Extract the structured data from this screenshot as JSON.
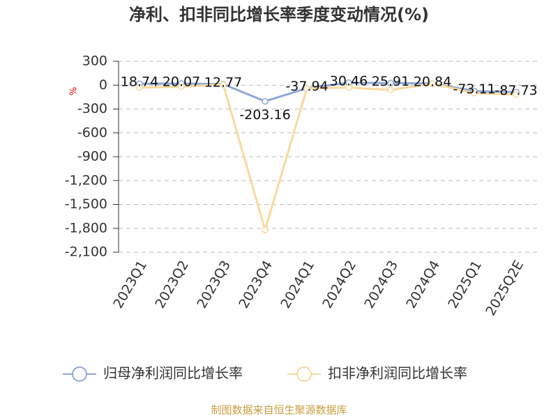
{
  "chart_data": {
    "type": "line",
    "title": "净利、扣非同比增长率季度变动情况(%)",
    "y_label": "%",
    "categories": [
      "2023Q1",
      "2023Q2",
      "2023Q3",
      "2023Q4",
      "2024Q1",
      "2024Q2",
      "2024Q3",
      "2024Q4",
      "2025Q1",
      "2025Q2E"
    ],
    "series": [
      {
        "name": "归母净利润同比增长率",
        "color": "#8fa8d8",
        "values": [
          18.74,
          20.07,
          12.77,
          -203.16,
          -37.94,
          30.46,
          25.91,
          20.84,
          -73.11,
          -87.73
        ],
        "show_labels": true
      },
      {
        "name": "扣非净利润同比增长率",
        "color": "#fbd89a",
        "values": [
          -30,
          -20,
          10,
          -1820,
          -40,
          -30,
          -60,
          20,
          -100,
          -120
        ],
        "show_labels": false
      }
    ],
    "ylim": [
      -2100,
      300
    ],
    "yticks": [
      300,
      0,
      -300,
      -600,
      -900,
      {
        "value": -1200,
        "label": "-1,200"
      },
      {
        "value": -1500,
        "label": "-1,500"
      },
      {
        "value": -1800,
        "label": "-1,800"
      },
      {
        "value": -2100,
        "label": "-2,100"
      }
    ],
    "grid": true,
    "source": "制图数据来自恒生聚源数据库"
  }
}
